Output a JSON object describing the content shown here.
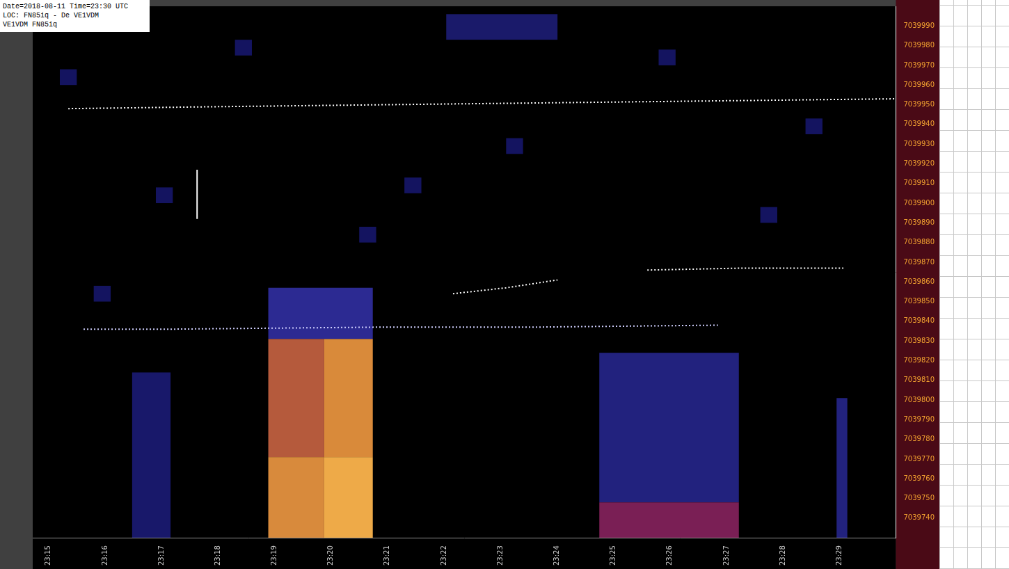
{
  "chart_data": {
    "type": "heatmap",
    "title": [
      "Date=2018-08-11 Time=23:30 UTC",
      "LOC: FN85iq - De VE1VDM",
      "VE1VDM FN85iq"
    ],
    "xlim": [
      14.72,
      30
    ],
    "xticks": [
      {
        "value": 15,
        "label": "23:15"
      },
      {
        "value": 16,
        "label": "23:16"
      },
      {
        "value": 17,
        "label": "23:17"
      },
      {
        "value": 18,
        "label": "23:18"
      },
      {
        "value": 19,
        "label": "23:19"
      },
      {
        "value": 20,
        "label": "23:20"
      },
      {
        "value": 21,
        "label": "23:21"
      },
      {
        "value": 22,
        "label": "23:22"
      },
      {
        "value": 23,
        "label": "23:23"
      },
      {
        "value": 24,
        "label": "23:24"
      },
      {
        "value": 25,
        "label": "23:25"
      },
      {
        "value": 26,
        "label": "23:26"
      },
      {
        "value": 27,
        "label": "23:27"
      },
      {
        "value": 28,
        "label": "23:28"
      },
      {
        "value": 29,
        "label": "23:29"
      }
    ],
    "ylim": [
      7039730,
      7040000
    ],
    "yticks": [
      7039740,
      7039750,
      7039760,
      7039770,
      7039780,
      7039790,
      7039800,
      7039810,
      7039820,
      7039830,
      7039840,
      7039850,
      7039860,
      7039870,
      7039880,
      7039890,
      7039900,
      7039910,
      7039920,
      7039930,
      7039940,
      7039950,
      7039960,
      7039970,
      7039980,
      7039990
    ],
    "grid": false,
    "cells": [
      {
        "x": [
          18.89,
          20.74
        ],
        "y": [
          7039831,
          7039857
        ],
        "color": "#2c2a92"
      },
      {
        "x": [
          18.89,
          19.88
        ],
        "y": [
          7039771,
          7039831
        ],
        "color": "#b55a3c"
      },
      {
        "x": [
          19.88,
          20.74
        ],
        "y": [
          7039771,
          7039831
        ],
        "color": "#d98a3a"
      },
      {
        "x": [
          18.89,
          19.88
        ],
        "y": [
          7039730,
          7039771
        ],
        "color": "#d88a3c"
      },
      {
        "x": [
          19.88,
          20.74
        ],
        "y": [
          7039730,
          7039771
        ],
        "color": "#eeaa48"
      },
      {
        "x": [
          24.75,
          27.22
        ],
        "y": [
          7039748,
          7039824
        ],
        "color": "#22227e"
      },
      {
        "x": [
          24.75,
          27.22
        ],
        "y": [
          7039730,
          7039748
        ],
        "color": "#7a1f55"
      },
      {
        "x": [
          28.95,
          29.14
        ],
        "y": [
          7039730,
          7039801
        ],
        "color": "#22227e"
      },
      {
        "x": [
          16.48,
          17.16
        ],
        "y": [
          7039730,
          7039814
        ],
        "color": "#18186a"
      },
      {
        "x": [
          22.04,
          24.01
        ],
        "y": [
          7039983,
          7039996
        ],
        "color": "#1a1a6a"
      },
      {
        "x": [
          15.2,
          15.5
        ],
        "y": [
          7039960,
          7039968
        ],
        "color": "#141460"
      },
      {
        "x": [
          16.9,
          17.2
        ],
        "y": [
          7039900,
          7039908
        ],
        "color": "#141460"
      },
      {
        "x": [
          18.3,
          18.6
        ],
        "y": [
          7039975,
          7039983
        ],
        "color": "#141460"
      },
      {
        "x": [
          21.3,
          21.6
        ],
        "y": [
          7039905,
          7039913
        ],
        "color": "#141460"
      },
      {
        "x": [
          23.1,
          23.4
        ],
        "y": [
          7039925,
          7039933
        ],
        "color": "#141460"
      },
      {
        "x": [
          25.8,
          26.1
        ],
        "y": [
          7039970,
          7039978
        ],
        "color": "#141460"
      },
      {
        "x": [
          27.6,
          27.9
        ],
        "y": [
          7039890,
          7039898
        ],
        "color": "#141460"
      },
      {
        "x": [
          28.4,
          28.7
        ],
        "y": [
          7039935,
          7039943
        ],
        "color": "#141460"
      },
      {
        "x": [
          20.5,
          20.8
        ],
        "y": [
          7039880,
          7039888
        ],
        "color": "#141460"
      },
      {
        "x": [
          15.8,
          16.1
        ],
        "y": [
          7039850,
          7039858
        ],
        "color": "#141460"
      }
    ],
    "traces": [
      {
        "color": "#ffffff",
        "line_style": "dotted",
        "x": [
          15.35,
          18,
          21,
          24,
          27,
          30
        ],
        "values": [
          7039948,
          7039949,
          7039950,
          7039951,
          7039952,
          7039953
        ]
      },
      {
        "color": "#d0d0ff",
        "line_style": "dotted",
        "x": [
          15.62,
          17.2,
          20.8,
          23.5,
          26.85
        ],
        "values": [
          7039836,
          7039836,
          7039837,
          7039837,
          7039838
        ]
      },
      {
        "color": "#ffffff",
        "line_style": "dotted",
        "x": [
          22.16,
          23.1,
          24.01
        ],
        "values": [
          7039854,
          7039857,
          7039861
        ]
      },
      {
        "color": "#ffffff",
        "line_style": "dotted",
        "x": [
          25.6,
          27.3,
          29.07
        ],
        "values": [
          7039866,
          7039867,
          7039867
        ]
      },
      {
        "color": "#ffffff",
        "line_style": "solid",
        "x": [
          17.63,
          17.63
        ],
        "values": [
          7039892,
          7039917
        ]
      }
    ]
  }
}
